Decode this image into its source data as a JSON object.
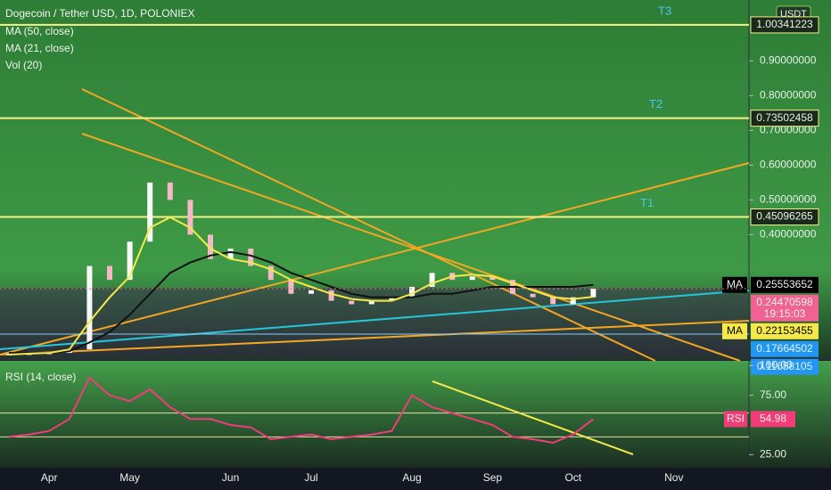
{
  "header": {
    "title": "Dogecoin / Tether USD, 1D, POLONIEX",
    "indicators": [
      "MA (50, close)",
      "MA (21, close)",
      "Vol (20)"
    ],
    "currency": "USDT"
  },
  "chart_data": [
    {
      "type": "line",
      "categories": [
        null,
        null,
        "Apr",
        null,
        null,
        null,
        "May",
        null,
        null,
        null,
        null,
        "Jun",
        null,
        null,
        null,
        "Jul",
        null,
        null,
        null,
        null,
        "Aug",
        null,
        null,
        null,
        "Sep",
        null,
        null,
        null,
        "Oct",
        null,
        null,
        null,
        null,
        "Nov",
        null,
        null
      ],
      "values": [
        0.057,
        0.058,
        0.06,
        0.07,
        0.31,
        0.27,
        0.38,
        0.55,
        0.5,
        0.4,
        0.33,
        0.36,
        0.31,
        0.27,
        0.23,
        0.24,
        0.21,
        0.2,
        0.21,
        0.22,
        0.25,
        0.29,
        0.27,
        0.28,
        0.27,
        0.23,
        0.22,
        0.2,
        0.22,
        0.245,
        null,
        null,
        null,
        null,
        null,
        null
      ],
      "color": "#f4b8c8",
      "series": [
        {
          "name": "MA (50, close)",
          "color": "#111111",
          "values": [
            0.06,
            0.06,
            0.06,
            0.065,
            0.09,
            0.12,
            0.17,
            0.23,
            0.29,
            0.32,
            0.34,
            0.35,
            0.34,
            0.32,
            0.29,
            0.27,
            0.25,
            0.23,
            0.22,
            0.22,
            0.22,
            0.23,
            0.23,
            0.24,
            0.25,
            0.25,
            0.25,
            0.25,
            0.25,
            0.2555,
            null,
            null,
            null,
            null,
            null,
            null
          ]
        },
        {
          "name": "MA (21, close)",
          "color": "#f5e94a",
          "values": [
            0.055,
            0.058,
            0.06,
            0.07,
            0.15,
            0.22,
            0.28,
            0.42,
            0.45,
            0.42,
            0.36,
            0.33,
            0.32,
            0.3,
            0.27,
            0.25,
            0.23,
            0.215,
            0.21,
            0.21,
            0.23,
            0.26,
            0.28,
            0.285,
            0.28,
            0.26,
            0.24,
            0.22,
            0.215,
            0.2215,
            null,
            null,
            null,
            null,
            null,
            null
          ]
        }
      ],
      "ylim": [
        0.05,
        1.075
      ],
      "yticks": [
        {
          "value": 0.4,
          "label": "0.40000000"
        },
        {
          "value": 0.5,
          "label": "0.50000000"
        },
        {
          "value": 0.6,
          "label": "0.60000000"
        },
        {
          "value": 0.7,
          "label": "0.70000000"
        },
        {
          "value": 0.8,
          "label": "0.80000000"
        },
        {
          "value": 0.9,
          "label": "0.90000000"
        }
      ],
      "levels": [
        {
          "label": "T1",
          "value": 0.45096265
        },
        {
          "label": "T2",
          "value": 0.73502458
        },
        {
          "label": "T3",
          "value": 1.00341223
        }
      ],
      "price_tags": [
        {
          "label": "MA",
          "value": 0.25553652,
          "color": "#000000"
        },
        {
          "value": 0.24470598,
          "timer": "19:15:03",
          "color": "#f06292"
        },
        {
          "label": "MA",
          "value": 0.22153455,
          "color": "#f5e94a"
        },
        {
          "value": 0.17664502,
          "color": "#2196f3"
        },
        {
          "value": 0.11658105,
          "color": "#2196f3"
        }
      ]
    },
    {
      "type": "line",
      "title": "RSI (14, close)",
      "values": [
        40,
        42,
        45,
        55,
        90,
        75,
        70,
        80,
        65,
        55,
        55,
        50,
        48,
        38,
        40,
        42,
        38,
        40,
        42,
        45,
        75,
        65,
        60,
        55,
        50,
        40,
        38,
        35,
        42,
        54.98,
        null,
        null,
        null,
        null,
        null,
        null
      ],
      "color": "#f23c7a",
      "ylim": [
        14,
        104
      ],
      "yticks": [
        {
          "value": 100,
          "label": "100.00"
        },
        {
          "value": 75,
          "label": "75.00"
        },
        {
          "value": 25,
          "label": "25.00"
        }
      ],
      "bands": [
        60,
        40
      ],
      "tag": {
        "label": "RSI",
        "value": 54.98
      }
    }
  ]
}
